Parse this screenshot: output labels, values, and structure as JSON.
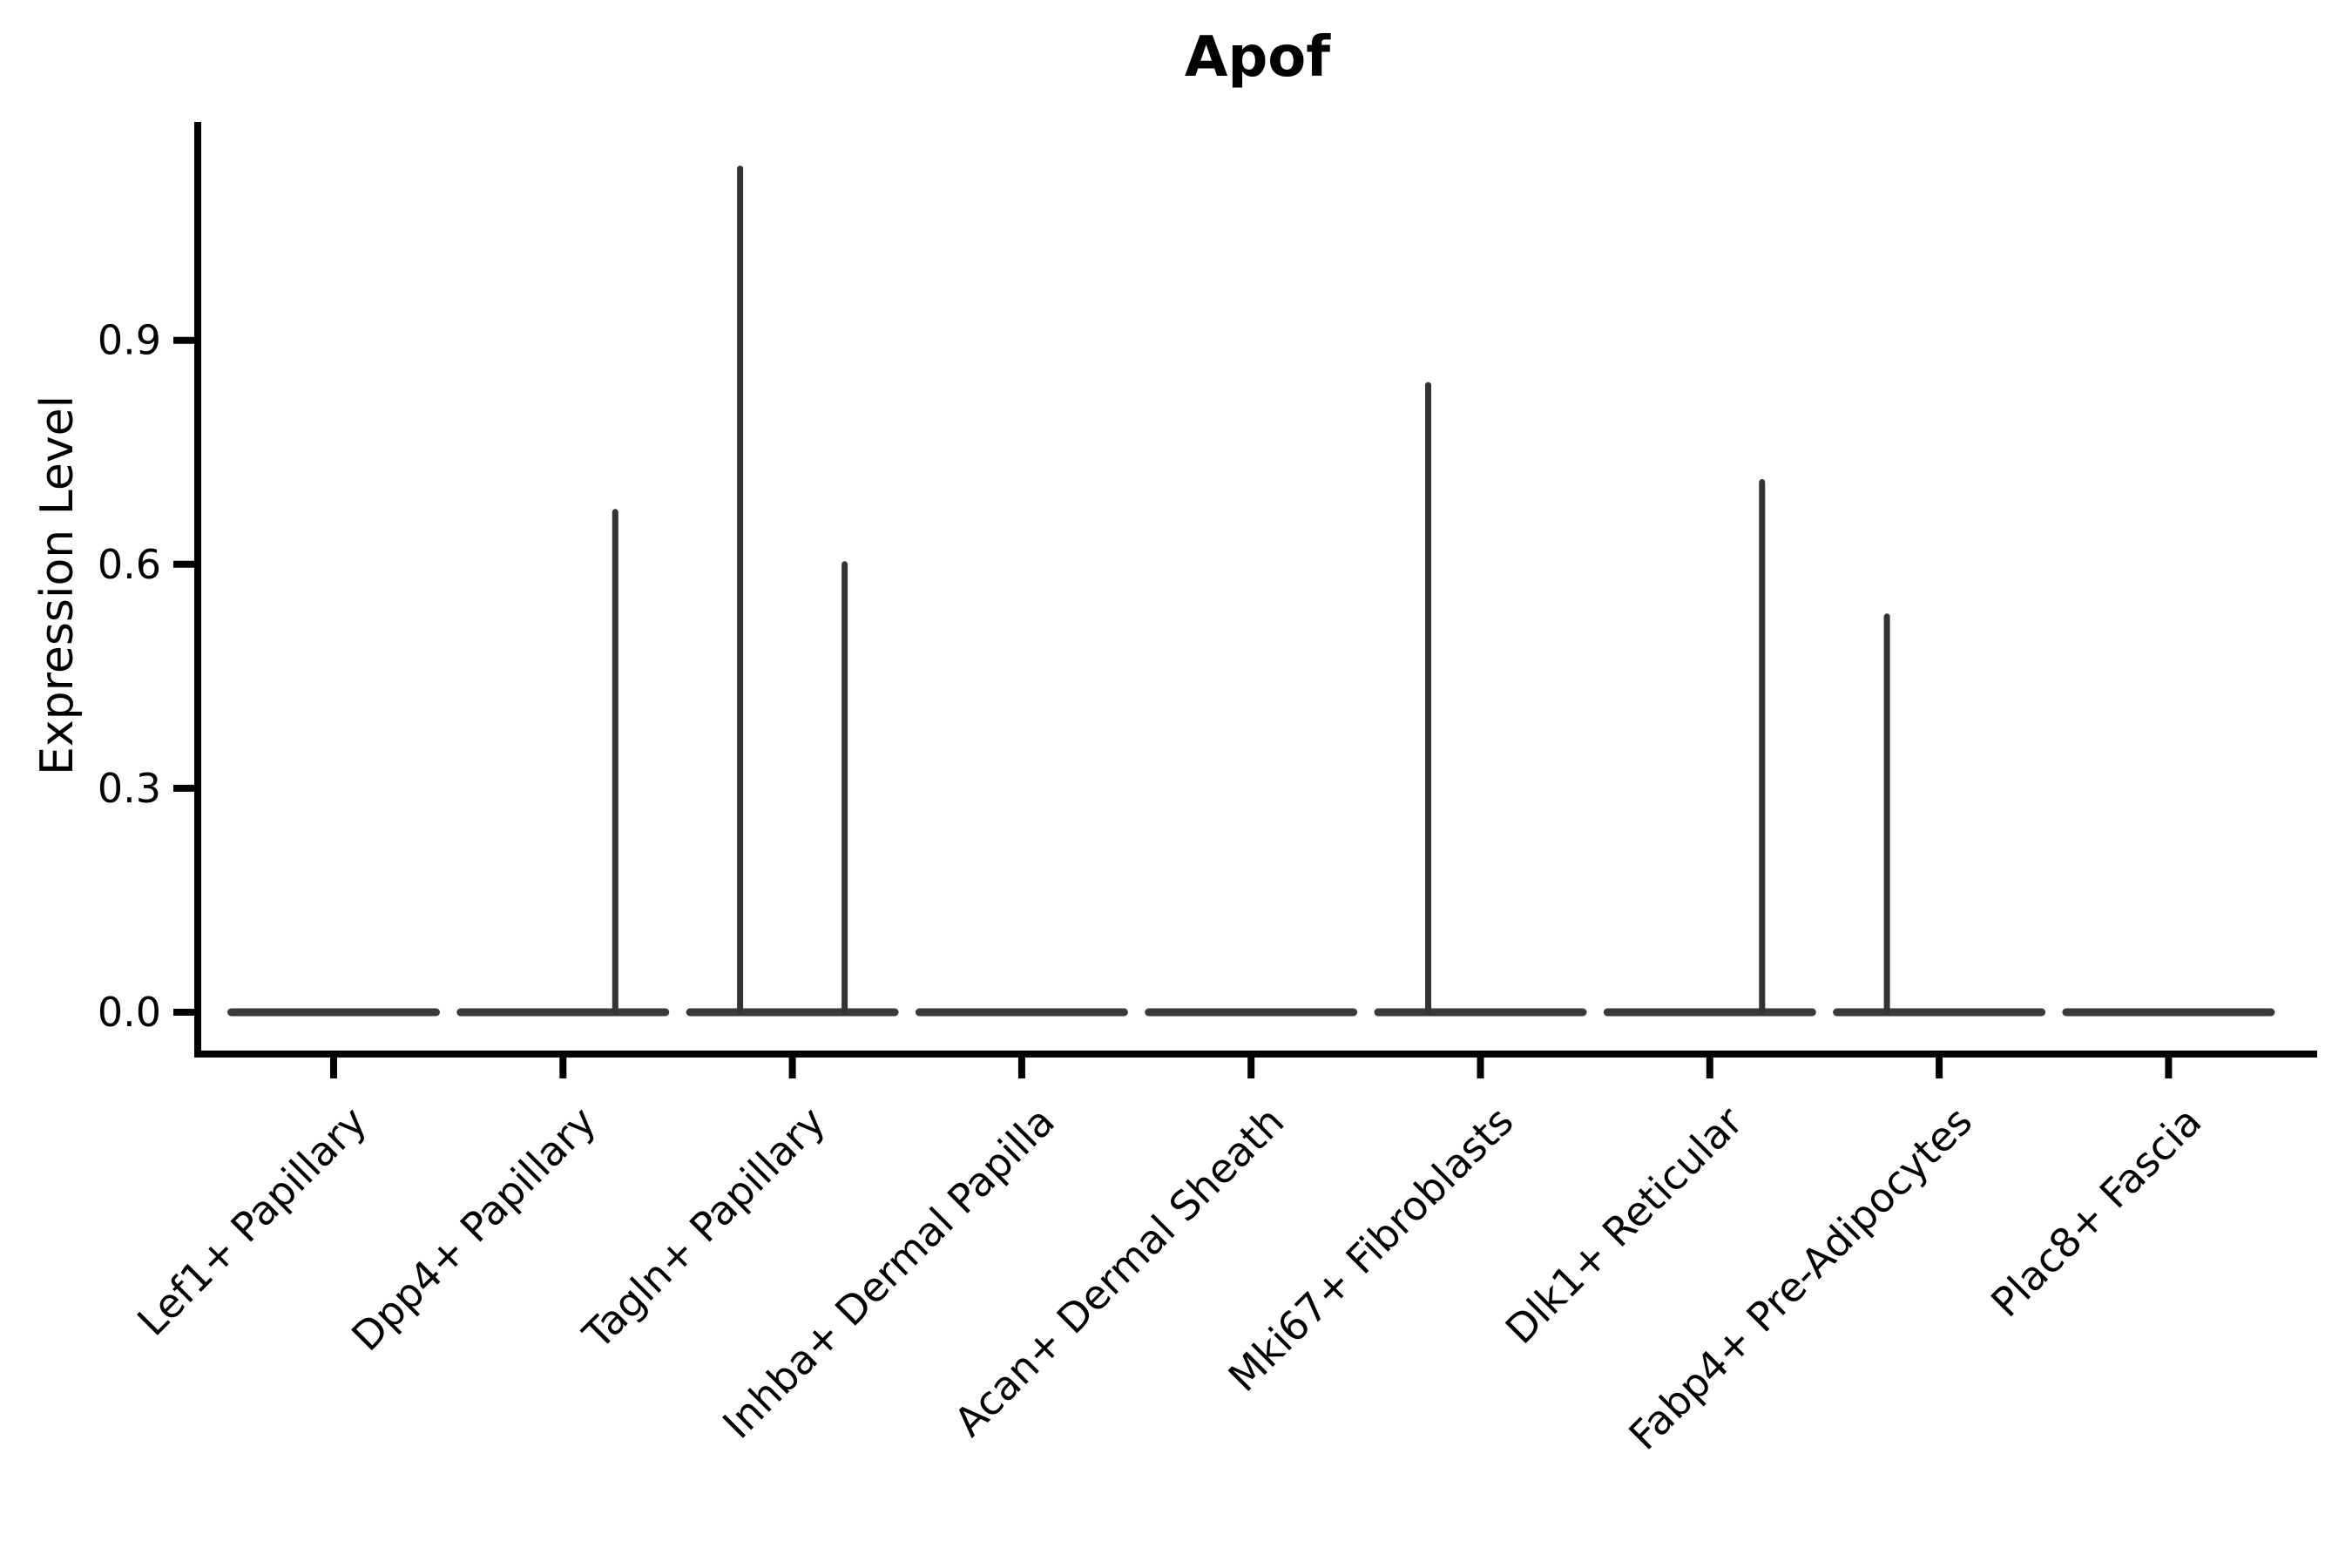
{
  "page": {
    "background": "#ffffff"
  },
  "chart_data": {
    "type": "violin",
    "title": "Apof",
    "xlabel": "",
    "ylabel": "Expression Level",
    "yticks": [
      0.0,
      0.3,
      0.6,
      0.9
    ],
    "ytick_labels": [
      "0.0",
      "0.3",
      "0.6",
      "0.9"
    ],
    "ylim": [
      0,
      1.19
    ],
    "grid": false,
    "legend": "none",
    "description": "Violin plot of Apof expression per fibroblast subtype; each violin collapses to a flat bar at 0 with thin vertical spikes (dodged left/right sub-violins) reaching the max expression.",
    "categories": [
      {
        "label": "Lef1+ Papillary",
        "zero_bar": true,
        "spikes": []
      },
      {
        "label": "Dpp4+ Papillary",
        "zero_bar": true,
        "spikes": [
          {
            "side": "right",
            "max": 0.67
          }
        ]
      },
      {
        "label": "Tagln+ Papillary",
        "zero_bar": true,
        "spikes": [
          {
            "side": "left",
            "max": 1.13
          },
          {
            "side": "right",
            "max": 0.6
          }
        ]
      },
      {
        "label": "Inhba+ Dermal Papilla",
        "zero_bar": true,
        "spikes": []
      },
      {
        "label": "Acan+ Dermal Sheath",
        "zero_bar": true,
        "spikes": []
      },
      {
        "label": "Mki67+ Fibroblasts",
        "zero_bar": true,
        "spikes": [
          {
            "side": "left",
            "max": 0.84
          }
        ]
      },
      {
        "label": "Dlk1+ Reticular",
        "zero_bar": true,
        "spikes": [
          {
            "side": "right",
            "max": 0.71
          }
        ]
      },
      {
        "label": "Fabp4+ Pre-Adipocytes",
        "zero_bar": true,
        "spikes": [
          {
            "side": "left",
            "max": 0.53
          }
        ]
      },
      {
        "label": "Plac8+ Fascia",
        "zero_bar": true,
        "spikes": []
      }
    ],
    "colors": {
      "axis": "#000000",
      "tick_label": "#000000",
      "violin": "#3a3a3a",
      "spike": "#333333",
      "title": "#000000"
    }
  }
}
